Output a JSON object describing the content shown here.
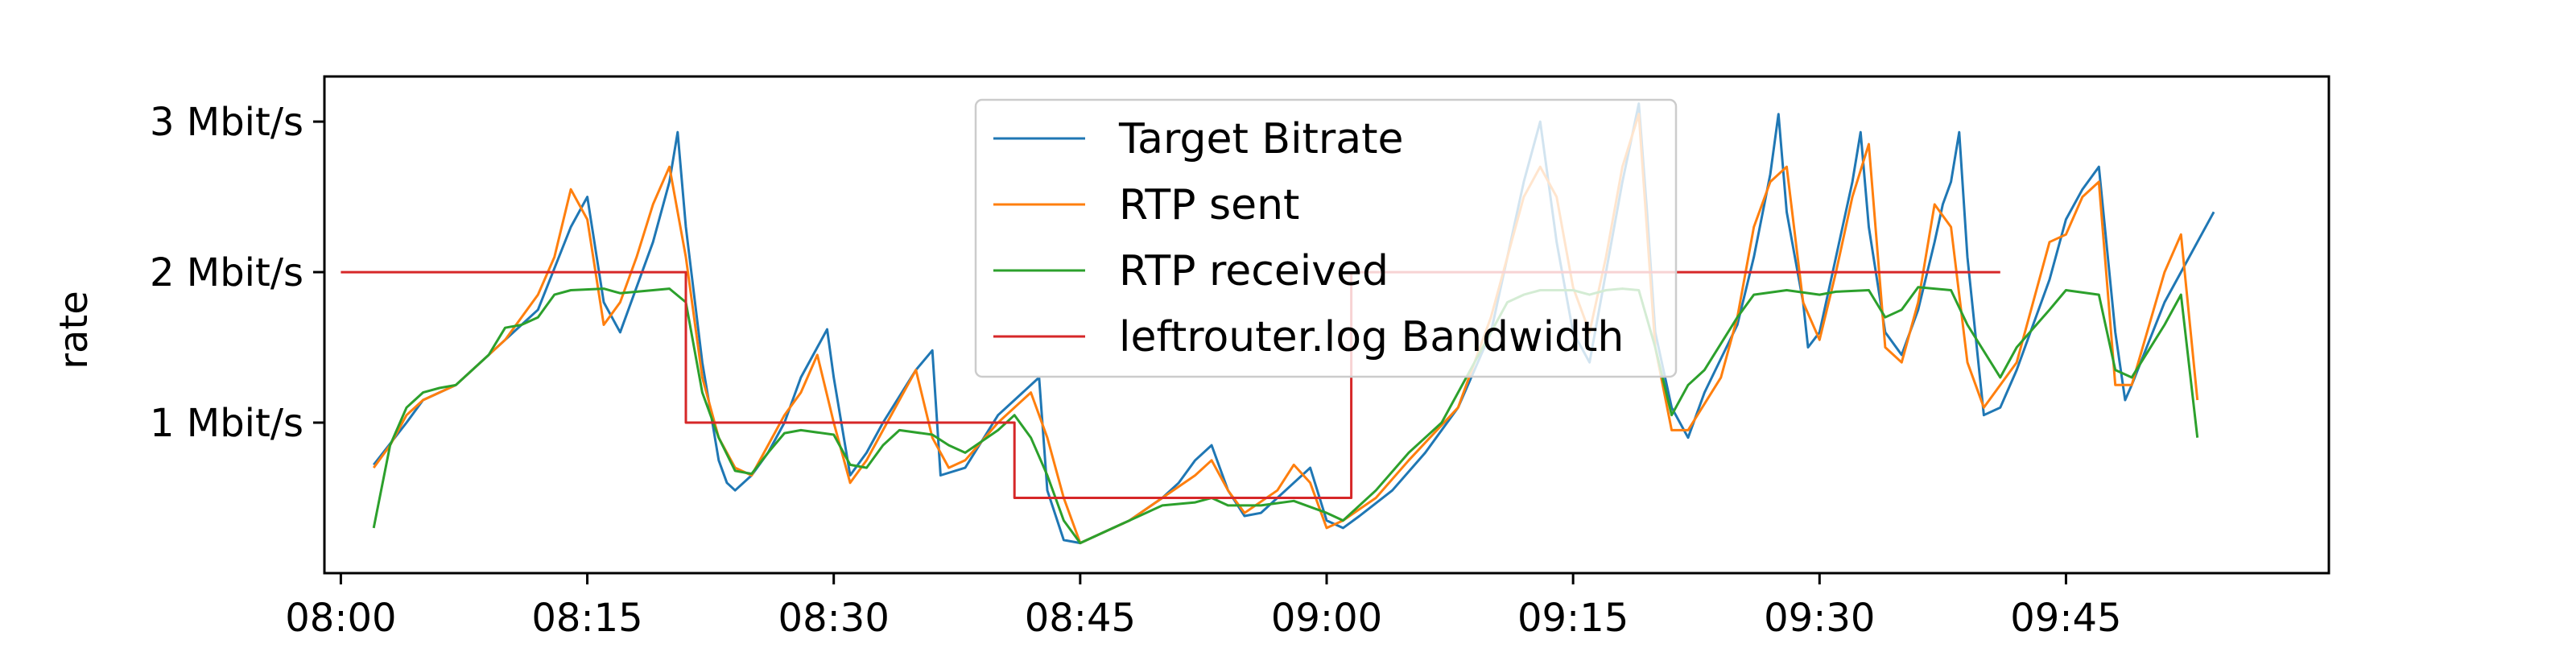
{
  "chart_data": {
    "type": "line",
    "title": "",
    "xlabel": "",
    "ylabel": "rate",
    "xlim": [
      "07:59",
      "10:01"
    ],
    "ylim_mbit": [
      0,
      3.3
    ],
    "grid": false,
    "legend_placement": "upper-center",
    "x_ticks": [
      "08:00",
      "08:15",
      "08:30",
      "08:45",
      "09:00",
      "09:15",
      "09:30",
      "09:45"
    ],
    "y_ticks": [
      {
        "value": 1,
        "label": "1 Mbit/s"
      },
      {
        "value": 2,
        "label": "2 Mbit/s"
      },
      {
        "value": 3,
        "label": "3 Mbit/s"
      }
    ],
    "series": [
      {
        "name": "Target Bitrate",
        "color": "#1f77b4",
        "style": "line",
        "points": [
          [
            "08:02",
            0.72
          ],
          [
            "08:04",
            1.0
          ],
          [
            "08:05",
            1.15
          ],
          [
            "08:07",
            1.25
          ],
          [
            "08:10",
            1.55
          ],
          [
            "08:12",
            1.75
          ],
          [
            "08:14",
            2.3
          ],
          [
            "08:15",
            2.5
          ],
          [
            "08:16",
            1.8
          ],
          [
            "08:17",
            1.6
          ],
          [
            "08:19",
            2.2
          ],
          [
            "08:20",
            2.6
          ],
          [
            "08:20.5",
            2.93
          ],
          [
            "08:21",
            2.3
          ],
          [
            "08:22",
            1.4
          ],
          [
            "08:23",
            0.75
          ],
          [
            "08:23.5",
            0.6
          ],
          [
            "08:24",
            0.55
          ],
          [
            "08:25",
            0.65
          ],
          [
            "08:26",
            0.8
          ],
          [
            "08:27",
            1.0
          ],
          [
            "08:28",
            1.3
          ],
          [
            "08:29",
            1.5
          ],
          [
            "08:29.6",
            1.62
          ],
          [
            "08:30",
            1.3
          ],
          [
            "08:31",
            0.65
          ],
          [
            "08:32",
            0.8
          ],
          [
            "08:33",
            1.0
          ],
          [
            "08:35",
            1.35
          ],
          [
            "08:36",
            1.48
          ],
          [
            "08:36.5",
            0.65
          ],
          [
            "08:38",
            0.7
          ],
          [
            "08:40",
            1.05
          ],
          [
            "08:41",
            1.15
          ],
          [
            "08:42.5",
            1.3
          ],
          [
            "08:43",
            0.55
          ],
          [
            "08:44",
            0.22
          ],
          [
            "08:45",
            0.2
          ],
          [
            "08:47",
            0.3
          ],
          [
            "08:48",
            0.35
          ],
          [
            "08:50",
            0.5
          ],
          [
            "08:51",
            0.6
          ],
          [
            "08:52",
            0.75
          ],
          [
            "08:53",
            0.85
          ],
          [
            "08:54",
            0.55
          ],
          [
            "08:55",
            0.38
          ],
          [
            "08:56",
            0.4
          ],
          [
            "08:57",
            0.5
          ],
          [
            "08:58",
            0.6
          ],
          [
            "08:59",
            0.7
          ],
          [
            "09:00",
            0.35
          ],
          [
            "09:01",
            0.3
          ],
          [
            "09:02",
            0.38
          ],
          [
            "09:04",
            0.55
          ],
          [
            "09:06",
            0.8
          ],
          [
            "09:08",
            1.1
          ],
          [
            "09:10",
            1.6
          ],
          [
            "09:11",
            2.1
          ],
          [
            "09:12",
            2.6
          ],
          [
            "09:13",
            3.0
          ],
          [
            "09:14",
            2.2
          ],
          [
            "09:15",
            1.6
          ],
          [
            "09:16",
            1.4
          ],
          [
            "09:17",
            2.0
          ],
          [
            "09:18",
            2.6
          ],
          [
            "09:19",
            3.12
          ],
          [
            "09:19.5",
            2.4
          ],
          [
            "09:20",
            1.6
          ],
          [
            "09:21",
            1.1
          ],
          [
            "09:22",
            0.9
          ],
          [
            "09:23",
            1.2
          ],
          [
            "09:25",
            1.65
          ],
          [
            "09:26",
            2.1
          ],
          [
            "09:27",
            2.65
          ],
          [
            "09:27.5",
            3.05
          ],
          [
            "09:28",
            2.4
          ],
          [
            "09:29",
            1.8
          ],
          [
            "09:29.3",
            1.5
          ],
          [
            "09:30",
            1.6
          ],
          [
            "09:31",
            2.1
          ],
          [
            "09:32",
            2.6
          ],
          [
            "09:32.5",
            2.93
          ],
          [
            "09:33",
            2.3
          ],
          [
            "09:34",
            1.6
          ],
          [
            "09:35",
            1.45
          ],
          [
            "09:36",
            1.75
          ],
          [
            "09:37",
            2.2
          ],
          [
            "09:37.5",
            2.45
          ],
          [
            "09:38",
            2.6
          ],
          [
            "09:38.5",
            2.93
          ],
          [
            "09:39",
            2.1
          ],
          [
            "09:40",
            1.05
          ],
          [
            "09:41",
            1.1
          ],
          [
            "09:42",
            1.35
          ],
          [
            "09:43",
            1.65
          ],
          [
            "09:44",
            1.95
          ],
          [
            "09:45",
            2.35
          ],
          [
            "09:46",
            2.55
          ],
          [
            "09:47",
            2.7
          ],
          [
            "09:48",
            1.6
          ],
          [
            "09:48.6",
            1.15
          ],
          [
            "09:49",
            1.25
          ],
          [
            "09:51",
            1.8
          ],
          [
            "09:52",
            2.0
          ],
          [
            "09:53",
            2.2
          ],
          [
            "09:54",
            2.4
          ]
        ]
      },
      {
        "name": "RTP sent",
        "color": "#ff7f0e",
        "style": "line",
        "points": [
          [
            "08:02",
            0.7
          ],
          [
            "08:03",
            0.85
          ],
          [
            "08:04",
            1.05
          ],
          [
            "08:05",
            1.15
          ],
          [
            "08:07",
            1.25
          ],
          [
            "08:10",
            1.55
          ],
          [
            "08:12",
            1.85
          ],
          [
            "08:13",
            2.1
          ],
          [
            "08:14",
            2.55
          ],
          [
            "08:15",
            2.35
          ],
          [
            "08:16",
            1.65
          ],
          [
            "08:17",
            1.8
          ],
          [
            "08:18",
            2.1
          ],
          [
            "08:19",
            2.45
          ],
          [
            "08:20",
            2.7
          ],
          [
            "08:21",
            2.1
          ],
          [
            "08:22",
            1.3
          ],
          [
            "08:23",
            0.9
          ],
          [
            "08:24",
            0.7
          ],
          [
            "08:25",
            0.65
          ],
          [
            "08:26",
            0.85
          ],
          [
            "08:27",
            1.05
          ],
          [
            "08:28",
            1.2
          ],
          [
            "08:29",
            1.45
          ],
          [
            "08:30",
            1.0
          ],
          [
            "08:31",
            0.6
          ],
          [
            "08:32",
            0.75
          ],
          [
            "08:33",
            0.95
          ],
          [
            "08:34",
            1.15
          ],
          [
            "08:35",
            1.35
          ],
          [
            "08:36",
            0.9
          ],
          [
            "08:37",
            0.7
          ],
          [
            "08:38",
            0.75
          ],
          [
            "08:40",
            1.0
          ],
          [
            "08:42",
            1.2
          ],
          [
            "08:43",
            0.9
          ],
          [
            "08:44",
            0.5
          ],
          [
            "08:45",
            0.2
          ],
          [
            "08:46",
            0.25
          ],
          [
            "08:48",
            0.35
          ],
          [
            "08:50",
            0.5
          ],
          [
            "08:52",
            0.65
          ],
          [
            "08:53",
            0.75
          ],
          [
            "08:54",
            0.55
          ],
          [
            "08:55",
            0.4
          ],
          [
            "08:57",
            0.55
          ],
          [
            "08:58",
            0.72
          ],
          [
            "08:59",
            0.6
          ],
          [
            "09:00",
            0.3
          ],
          [
            "09:01",
            0.35
          ],
          [
            "09:03",
            0.5
          ],
          [
            "09:05",
            0.75
          ],
          [
            "09:08",
            1.1
          ],
          [
            "09:10",
            1.7
          ],
          [
            "09:12",
            2.5
          ],
          [
            "09:13",
            2.7
          ],
          [
            "09:14",
            2.5
          ],
          [
            "09:15",
            1.9
          ],
          [
            "09:16",
            1.6
          ],
          [
            "09:17",
            2.1
          ],
          [
            "09:18",
            2.7
          ],
          [
            "09:19",
            3.05
          ],
          [
            "09:20",
            1.5
          ],
          [
            "09:21",
            0.95
          ],
          [
            "09:22",
            0.95
          ],
          [
            "09:24",
            1.3
          ],
          [
            "09:25",
            1.7
          ],
          [
            "09:26",
            2.3
          ],
          [
            "09:27",
            2.6
          ],
          [
            "09:28",
            2.7
          ],
          [
            "09:29",
            1.8
          ],
          [
            "09:30",
            1.55
          ],
          [
            "09:31",
            2.0
          ],
          [
            "09:32",
            2.5
          ],
          [
            "09:33",
            2.85
          ],
          [
            "09:34",
            1.5
          ],
          [
            "09:35",
            1.4
          ],
          [
            "09:36",
            1.8
          ],
          [
            "09:37",
            2.45
          ],
          [
            "09:38",
            2.3
          ],
          [
            "09:39",
            1.4
          ],
          [
            "09:40",
            1.1
          ],
          [
            "09:42",
            1.4
          ],
          [
            "09:43",
            1.8
          ],
          [
            "09:44",
            2.2
          ],
          [
            "09:45",
            2.25
          ],
          [
            "09:46",
            2.5
          ],
          [
            "09:47",
            2.6
          ],
          [
            "09:48",
            1.25
          ],
          [
            "09:49",
            1.25
          ],
          [
            "09:51",
            2.0
          ],
          [
            "09:52",
            2.25
          ],
          [
            "09:53",
            1.15
          ]
        ]
      },
      {
        "name": "RTP received",
        "color": "#2ca02c",
        "style": "line",
        "points": [
          [
            "08:02",
            0.3
          ],
          [
            "08:03",
            0.85
          ],
          [
            "08:04",
            1.1
          ],
          [
            "08:05",
            1.2
          ],
          [
            "08:06",
            1.23
          ],
          [
            "08:07",
            1.25
          ],
          [
            "08:09",
            1.45
          ],
          [
            "08:10",
            1.63
          ],
          [
            "08:11",
            1.65
          ],
          [
            "08:12",
            1.7
          ],
          [
            "08:13",
            1.85
          ],
          [
            "08:14",
            1.88
          ],
          [
            "08:16",
            1.89
          ],
          [
            "08:17",
            1.86
          ],
          [
            "08:18",
            1.87
          ],
          [
            "08:19",
            1.88
          ],
          [
            "08:20",
            1.89
          ],
          [
            "08:21",
            1.8
          ],
          [
            "08:22",
            1.2
          ],
          [
            "08:23",
            0.9
          ],
          [
            "08:24",
            0.68
          ],
          [
            "08:25",
            0.66
          ],
          [
            "08:26",
            0.8
          ],
          [
            "08:27",
            0.93
          ],
          [
            "08:28",
            0.95
          ],
          [
            "08:30",
            0.92
          ],
          [
            "08:31",
            0.72
          ],
          [
            "08:32",
            0.7
          ],
          [
            "08:33",
            0.85
          ],
          [
            "08:34",
            0.95
          ],
          [
            "08:36",
            0.92
          ],
          [
            "08:37",
            0.85
          ],
          [
            "08:38",
            0.8
          ],
          [
            "08:40",
            0.95
          ],
          [
            "08:41",
            1.05
          ],
          [
            "08:42",
            0.9
          ],
          [
            "08:43",
            0.65
          ],
          [
            "08:44",
            0.35
          ],
          [
            "08:45",
            0.2
          ],
          [
            "08:47",
            0.3
          ],
          [
            "08:49",
            0.4
          ],
          [
            "08:50",
            0.45
          ],
          [
            "08:52",
            0.47
          ],
          [
            "08:53",
            0.5
          ],
          [
            "08:54",
            0.45
          ],
          [
            "08:56",
            0.45
          ],
          [
            "08:58",
            0.48
          ],
          [
            "09:00",
            0.4
          ],
          [
            "09:01",
            0.35
          ],
          [
            "09:03",
            0.55
          ],
          [
            "09:05",
            0.8
          ],
          [
            "09:07",
            1.0
          ],
          [
            "09:09",
            1.4
          ],
          [
            "09:11",
            1.8
          ],
          [
            "09:12",
            1.85
          ],
          [
            "09:13",
            1.88
          ],
          [
            "09:15",
            1.88
          ],
          [
            "09:16",
            1.85
          ],
          [
            "09:17",
            1.88
          ],
          [
            "09:18",
            1.89
          ],
          [
            "09:19",
            1.88
          ],
          [
            "09:20",
            1.5
          ],
          [
            "09:21",
            1.05
          ],
          [
            "09:22",
            1.25
          ],
          [
            "09:23",
            1.35
          ],
          [
            "09:25",
            1.7
          ],
          [
            "09:26",
            1.85
          ],
          [
            "09:28",
            1.88
          ],
          [
            "09:30",
            1.85
          ],
          [
            "09:31",
            1.87
          ],
          [
            "09:33",
            1.88
          ],
          [
            "09:34",
            1.7
          ],
          [
            "09:35",
            1.75
          ],
          [
            "09:36",
            1.9
          ],
          [
            "09:38",
            1.88
          ],
          [
            "09:39",
            1.65
          ],
          [
            "09:41",
            1.3
          ],
          [
            "09:42",
            1.5
          ],
          [
            "09:44",
            1.75
          ],
          [
            "09:45",
            1.88
          ],
          [
            "09:47",
            1.85
          ],
          [
            "09:48",
            1.35
          ],
          [
            "09:49",
            1.3
          ],
          [
            "09:51",
            1.65
          ],
          [
            "09:52",
            1.85
          ],
          [
            "09:53",
            0.9
          ]
        ]
      },
      {
        "name": "leftrouter.log Bandwidth",
        "color": "#d62728",
        "style": "step",
        "points": [
          [
            "08:00",
            2.0
          ],
          [
            "08:21",
            2.0
          ],
          [
            "08:21",
            1.0
          ],
          [
            "08:41",
            1.0
          ],
          [
            "08:41",
            0.5
          ],
          [
            "09:01.5",
            0.5
          ],
          [
            "09:01.5",
            2.0
          ],
          [
            "09:41",
            2.0
          ]
        ]
      }
    ]
  }
}
